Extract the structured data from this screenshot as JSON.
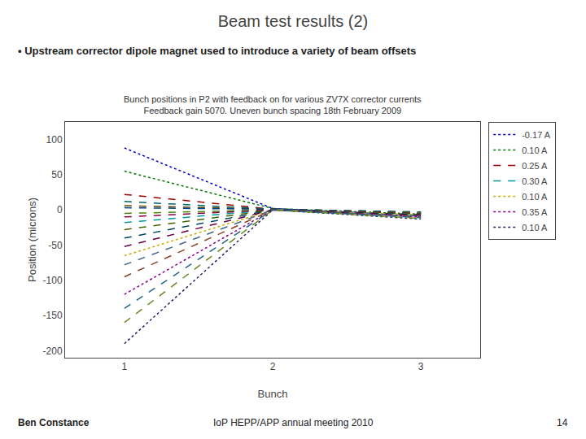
{
  "chart_data": {
    "type": "line",
    "title": "Beam test results (2)",
    "subtitle": "• Upstream corrector dipole magnet used to introduce a variety of beam offsets",
    "annotations": [
      "Bunch positions in P2 with feedback on for various ZV7X corrector currents",
      "Feedback gain 5070. Uneven bunch spacing 18th February 2009",
      "Ben Constance",
      "IoP HEPP/APP annual meeting 2010",
      "14"
    ],
    "x_label": "Bunch",
    "y_label": "Position (microns)",
    "x": [
      1,
      2,
      3
    ],
    "xlim": [
      0.6,
      3.4
    ],
    "ylim": [
      -210,
      125
    ],
    "xticks": [
      1,
      2,
      3
    ],
    "yticks": [
      100,
      50,
      0,
      -50,
      -100,
      -150,
      -200
    ],
    "grid": false,
    "legend": "upper right",
    "series": [
      {
        "name": "-0.17 A",
        "color": "#0000cc",
        "line_style": "dotted",
        "values": [
          88,
          2,
          -8
        ]
      },
      {
        "name": "0.10 A",
        "color": "#007700",
        "line_style": "dotted",
        "values": [
          55,
          2,
          -6
        ]
      },
      {
        "name": "0.25 A",
        "color": "#990000",
        "line_style": "dashed",
        "values": [
          22,
          1,
          -5
        ]
      },
      {
        "name": "0.30 A",
        "color": "#009999",
        "line_style": "dashed",
        "values": [
          -18,
          0,
          -4
        ]
      },
      {
        "name": "0.10 A",
        "color": "#ccaa00",
        "line_style": "dotted",
        "values": [
          -65,
          0,
          -7
        ]
      },
      {
        "name": "0.35 A",
        "color": "#880088",
        "line_style": "dotted",
        "values": [
          -120,
          0,
          -10
        ]
      },
      {
        "name": "0.10 A",
        "color": "#222266",
        "line_style": "dotted",
        "values": [
          -190,
          0,
          -13
        ]
      },
      {
        "color": "#006666",
        "line_style": "dashed",
        "values": [
          12,
          1,
          -4
        ]
      },
      {
        "color": "#664400",
        "line_style": "dashed",
        "values": [
          6,
          1,
          -3
        ]
      },
      {
        "color": "#004488",
        "line_style": "dashed",
        "values": [
          3,
          1,
          -3
        ]
      },
      {
        "color": "#448800",
        "line_style": "dashed",
        "values": [
          -5,
          0,
          -4
        ]
      },
      {
        "color": "#880044",
        "line_style": "dashed",
        "values": [
          -10,
          0,
          -5
        ]
      },
      {
        "color": "#446600",
        "line_style": "dashed",
        "values": [
          -28,
          0,
          -6
        ]
      },
      {
        "color": "#004466",
        "line_style": "dashed",
        "values": [
          -40,
          0,
          -7
        ]
      },
      {
        "color": "#660044",
        "line_style": "dashed",
        "values": [
          -52,
          0,
          -8
        ]
      },
      {
        "color": "#446688",
        "line_style": "dashed",
        "values": [
          -78,
          0,
          -9
        ]
      },
      {
        "color": "#884422",
        "line_style": "dashed",
        "values": [
          -95,
          0,
          -10
        ]
      },
      {
        "color": "#226688",
        "line_style": "dashed",
        "values": [
          -140,
          0,
          -11
        ]
      },
      {
        "color": "#668822",
        "line_style": "dashed",
        "values": [
          -160,
          0,
          -12
        ]
      }
    ]
  }
}
